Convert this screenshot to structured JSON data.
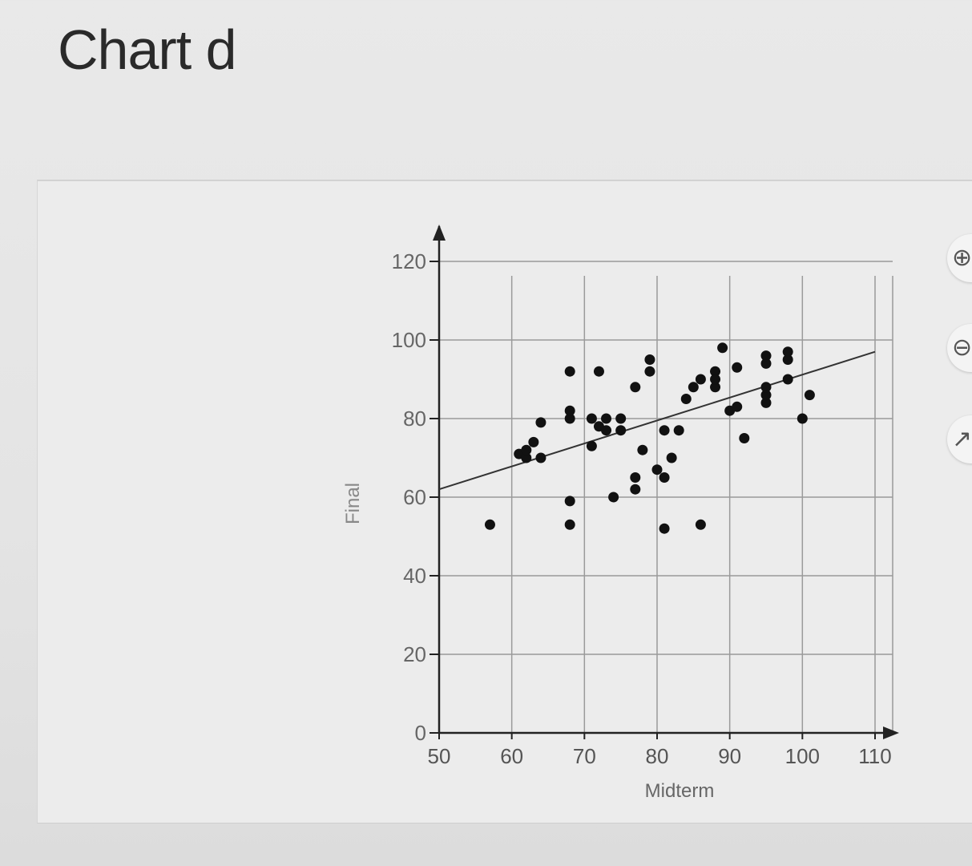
{
  "page": {
    "title": "Chart d"
  },
  "toolbar": {
    "zoom_in_icon": "magnifier-plus-icon",
    "zoom_out_icon": "magnifier-minus-icon",
    "popout_icon": "external-link-icon",
    "zoom_in_glyph": "⊕",
    "zoom_out_glyph": "⊖",
    "popout_glyph": "↗"
  },
  "chart_data": {
    "type": "scatter",
    "title": "",
    "xlabel": "Midterm",
    "ylabel": "Final",
    "xlim": [
      50,
      110
    ],
    "ylim": [
      0,
      120
    ],
    "xticks": [
      50,
      60,
      70,
      80,
      90,
      100,
      110
    ],
    "yticks": [
      0,
      20,
      40,
      60,
      80,
      100,
      120
    ],
    "grid": true,
    "points": [
      [
        57,
        53
      ],
      [
        61,
        71
      ],
      [
        62,
        70
      ],
      [
        62,
        72
      ],
      [
        63,
        74
      ],
      [
        64,
        70
      ],
      [
        64,
        79
      ],
      [
        68,
        59
      ],
      [
        68,
        53
      ],
      [
        68,
        92
      ],
      [
        68,
        80
      ],
      [
        68,
        82
      ],
      [
        71,
        73
      ],
      [
        71,
        80
      ],
      [
        72,
        78
      ],
      [
        72,
        92
      ],
      [
        73,
        80
      ],
      [
        73,
        77
      ],
      [
        74,
        60
      ],
      [
        75,
        80
      ],
      [
        75,
        77
      ],
      [
        77,
        65
      ],
      [
        77,
        62
      ],
      [
        77,
        88
      ],
      [
        78,
        72
      ],
      [
        79,
        92
      ],
      [
        79,
        95
      ],
      [
        80,
        67
      ],
      [
        81,
        52
      ],
      [
        81,
        65
      ],
      [
        81,
        77
      ],
      [
        82,
        70
      ],
      [
        83,
        77
      ],
      [
        84,
        85
      ],
      [
        85,
        88
      ],
      [
        86,
        53
      ],
      [
        86,
        90
      ],
      [
        88,
        92
      ],
      [
        88,
        88
      ],
      [
        88,
        90
      ],
      [
        89,
        98
      ],
      [
        90,
        82
      ],
      [
        91,
        83
      ],
      [
        91,
        93
      ],
      [
        92,
        75
      ],
      [
        95,
        84
      ],
      [
        95,
        86
      ],
      [
        95,
        88
      ],
      [
        95,
        94
      ],
      [
        95,
        96
      ],
      [
        98,
        90
      ],
      [
        98,
        95
      ],
      [
        98,
        97
      ],
      [
        100,
        80
      ],
      [
        101,
        86
      ]
    ],
    "regression_line": {
      "x": [
        50,
        110
      ],
      "y": [
        62,
        97
      ]
    }
  }
}
